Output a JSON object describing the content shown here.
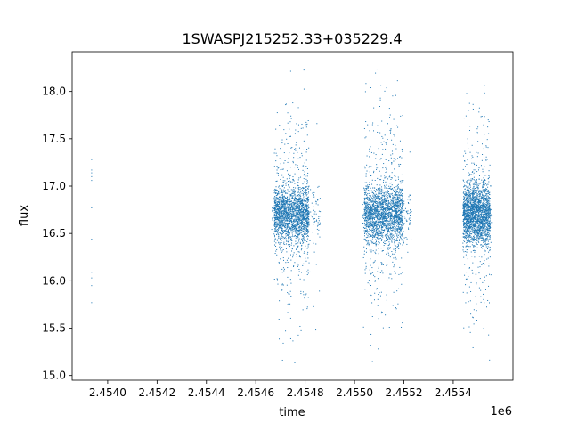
{
  "chart_data": {
    "type": "scatter",
    "title": "1SWASPJ215252.33+035229.4",
    "xlabel": "time",
    "ylabel": "flux",
    "x_offset_label": "1e6",
    "xlim": [
      2453856,
      2455642
    ],
    "ylim": [
      14.95,
      18.42
    ],
    "x_ticks": [
      2454000,
      2454200,
      2454400,
      2454600,
      2454800,
      2455000,
      2455200,
      2455400
    ],
    "x_tick_labels": [
      "2.4540",
      "2.4542",
      "2.4544",
      "2.4546",
      "2.4548",
      "2.4550",
      "2.4552",
      "2.4554"
    ],
    "y_ticks": [
      15.0,
      15.5,
      16.0,
      16.5,
      17.0,
      17.5,
      18.0
    ],
    "y_tick_labels": [
      "15.0",
      "15.5",
      "16.0",
      "16.5",
      "17.0",
      "17.5",
      "18.0"
    ],
    "grid": false,
    "marker_color": "#1f77b4",
    "isolated_points": [
      [
        2453935,
        17.28
      ],
      [
        2453935,
        17.17
      ],
      [
        2453935,
        17.14
      ],
      [
        2453935,
        17.1
      ],
      [
        2453935,
        17.06
      ],
      [
        2453935,
        16.77
      ],
      [
        2453935,
        16.44
      ],
      [
        2453935,
        16.09
      ],
      [
        2453935,
        16.03
      ],
      [
        2453935,
        15.95
      ],
      [
        2453935,
        15.77
      ]
    ],
    "seasons": [
      {
        "time_range": [
          2454664,
          2454863
        ],
        "dense_range": [
          2454675,
          2454816
        ],
        "median_flux": 16.7,
        "flux_range": [
          15.1,
          18.25
        ]
      },
      {
        "time_range": [
          2455033,
          2455231
        ],
        "dense_range": [
          2455040,
          2455195
        ],
        "median_flux": 16.7,
        "flux_range": [
          15.1,
          18.25
        ]
      },
      {
        "time_range": [
          2455437,
          2455556
        ],
        "dense_range": [
          2455440,
          2455550
        ],
        "median_flux": 16.7,
        "flux_range": [
          15.1,
          18.1
        ]
      }
    ]
  }
}
